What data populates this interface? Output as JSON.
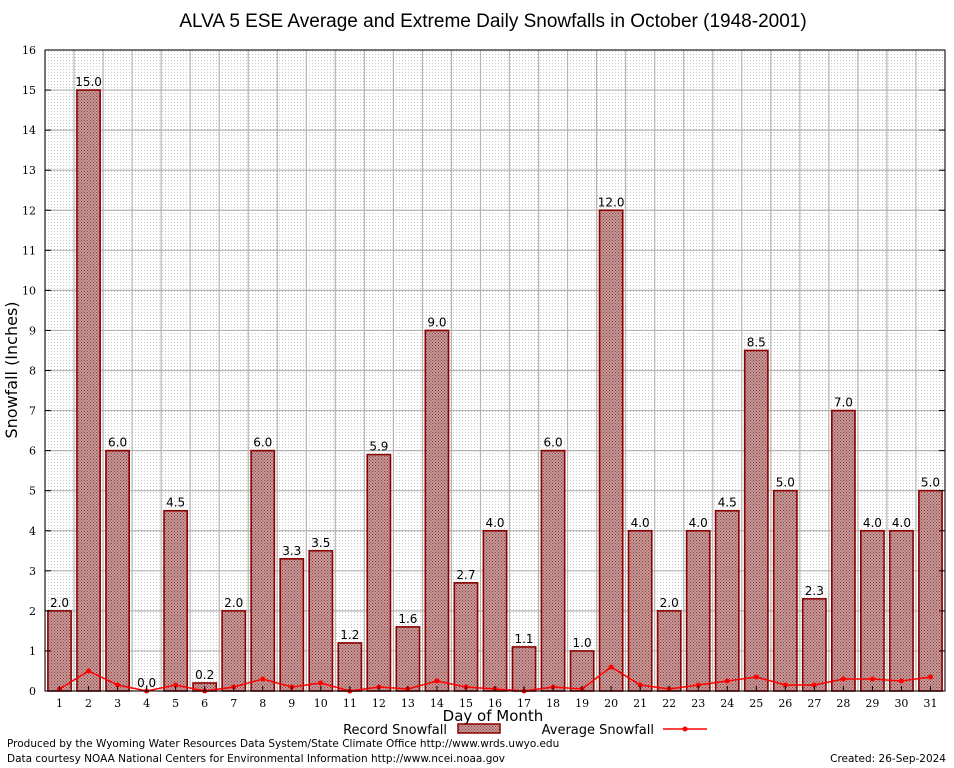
{
  "chart_data": {
    "type": "bar",
    "title": "ALVA 5 ESE Average and Extreme Daily Snowfalls in October (1948-2001)",
    "xlabel": "Day of Month",
    "ylabel": "Snowfall (Inches)",
    "ylim": [
      0,
      16
    ],
    "yticks": [
      "0",
      "1",
      "2",
      "3",
      "4",
      "5",
      "6",
      "7",
      "8",
      "9",
      "10",
      "11",
      "12",
      "13",
      "14",
      "15",
      "16"
    ],
    "categories": [
      "1",
      "2",
      "3",
      "4",
      "5",
      "6",
      "7",
      "8",
      "9",
      "10",
      "11",
      "12",
      "13",
      "14",
      "15",
      "16",
      "17",
      "18",
      "19",
      "20",
      "21",
      "22",
      "23",
      "24",
      "25",
      "26",
      "27",
      "28",
      "29",
      "30",
      "31"
    ],
    "grid": true,
    "legend_position": "bottom",
    "series": [
      {
        "name": "Record Snowfall",
        "type": "bar",
        "color": "#8b0000",
        "values": [
          2.0,
          15.0,
          6.0,
          0.0,
          4.5,
          0.2,
          2.0,
          6.0,
          3.3,
          3.5,
          1.2,
          5.9,
          1.6,
          9.0,
          2.7,
          4.0,
          1.1,
          6.0,
          1.0,
          12.0,
          4.0,
          2.0,
          4.0,
          4.5,
          8.5,
          5.0,
          2.3,
          7.0,
          4.0,
          4.0,
          5.0
        ],
        "data_labels": [
          "2.0",
          "15.0",
          "6.0",
          "0.0",
          "4.5",
          "0.2",
          "2.0",
          "6.0",
          "3.3",
          "3.5",
          "1.2",
          "5.9",
          "1.6",
          "9.0",
          "2.7",
          "4.0",
          "1.1",
          "6.0",
          "1.0",
          "12.0",
          "4.0",
          "2.0",
          "4.0",
          "4.5",
          "8.5",
          "5.0",
          "2.3",
          "7.0",
          "4.0",
          "4.0",
          "5.0"
        ]
      },
      {
        "name": "Average Snowfall",
        "type": "line",
        "color": "#ff0000",
        "values": [
          0.05,
          0.5,
          0.15,
          0.0,
          0.15,
          0.0,
          0.1,
          0.3,
          0.1,
          0.2,
          0.0,
          0.1,
          0.05,
          0.25,
          0.1,
          0.05,
          0.0,
          0.1,
          0.05,
          0.6,
          0.15,
          0.05,
          0.15,
          0.25,
          0.35,
          0.15,
          0.15,
          0.3,
          0.3,
          0.25,
          0.35
        ]
      }
    ]
  },
  "footer": {
    "line1": "Produced by the Wyoming Water Resources Data System/State Climate Office http://www.wrds.uwyo.edu",
    "line2": "Data courtesy NOAA National Centers for Environmental Information http://www.ncei.noaa.gov",
    "created": "Created:  26-Sep-2024"
  }
}
